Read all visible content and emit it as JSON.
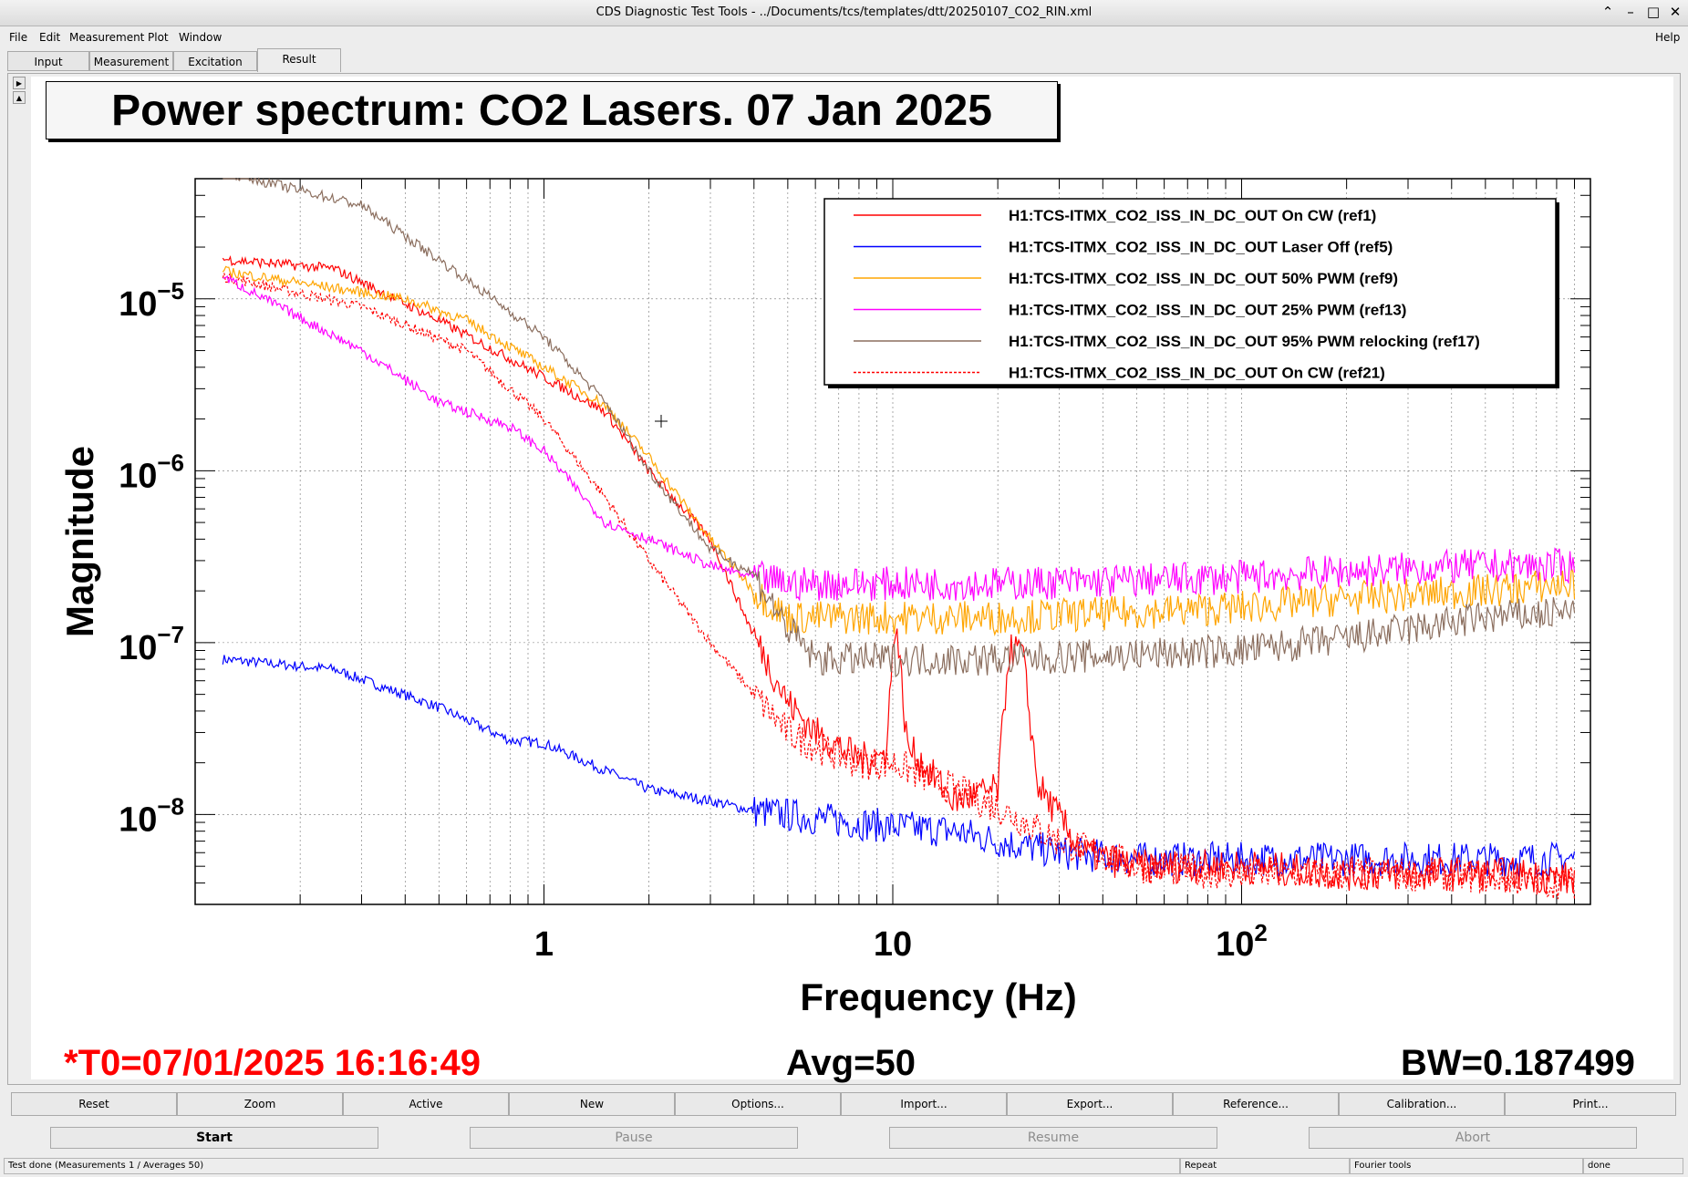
{
  "window": {
    "title": "CDS Diagnostic Test Tools - ../Documents/tcs/templates/dtt/20250107_CO2_RIN.xml",
    "controls": [
      "⌃",
      "–",
      "□",
      "✕"
    ]
  },
  "menu": {
    "items": [
      "File",
      "Edit",
      "Measurement",
      "Plot",
      "Window"
    ],
    "help": "Help"
  },
  "tabs": [
    {
      "label": "Input"
    },
    {
      "label": "Measurement"
    },
    {
      "label": "Excitation"
    },
    {
      "label": "Result",
      "active": true
    }
  ],
  "plot": {
    "title": "Power spectrum: CO2 Lasers. 07 Jan 2025",
    "footer": {
      "t0": "*T0=07/01/2025 16:16:49",
      "avg": "Avg=50",
      "bw": "BW=0.187499"
    }
  },
  "chart_data": {
    "type": "line",
    "title": "Power spectrum: CO2 Lasers. 07 Jan 2025",
    "xlabel": "Frequency (Hz)",
    "ylabel": "Magnitude",
    "xscale": "log",
    "yscale": "log",
    "xlim": [
      0.1,
      1000
    ],
    "ylim": [
      3e-09,
      5e-05
    ],
    "x_ticks": [
      {
        "v": 1,
        "label": "1"
      },
      {
        "v": 10,
        "label": "10"
      },
      {
        "v": 100,
        "label": "10",
        "exp": "2"
      }
    ],
    "y_ticks": [
      {
        "v": 1e-05,
        "label": "10",
        "exp": "−5"
      },
      {
        "v": 1e-06,
        "label": "10",
        "exp": "−6"
      },
      {
        "v": 1e-07,
        "label": "10",
        "exp": "−7"
      },
      {
        "v": 1e-08,
        "label": "10",
        "exp": "−8"
      }
    ],
    "grid": true,
    "legend_position": "top-right",
    "series": [
      {
        "name": "H1:TCS-ITMX_CO2_ISS_IN_DC_OUT On CW (ref1)",
        "color": "#ff0000",
        "dash": "",
        "x": [
          0.12,
          0.25,
          0.5,
          1,
          1.5,
          2,
          3,
          4,
          5,
          6,
          8,
          9.5,
          10.2,
          11,
          15,
          20,
          21.5,
          23.5,
          26,
          35,
          50,
          100,
          200,
          300,
          400,
          600,
          900
        ],
        "y": [
          1.7e-05,
          1.5e-05,
          7.5e-06,
          3.5e-06,
          2.2e-06,
          1e-06,
          4e-07,
          1.1e-07,
          4.5e-08,
          3e-08,
          2.1e-08,
          2.2e-08,
          1.4e-07,
          2.5e-08,
          1.2e-08,
          1.4e-08,
          9e-08,
          9e-08,
          1.5e-08,
          6e-09,
          5e-09,
          5e-09,
          4.5e-09,
          4.5e-09,
          4.5e-09,
          4.5e-09,
          4.2e-09
        ]
      },
      {
        "name": "H1:TCS-ITMX_CO2_ISS_IN_DC_OUT Laser Off (ref5)",
        "color": "#0000ff",
        "dash": "",
        "x": [
          0.12,
          0.25,
          0.5,
          0.8,
          1,
          1.5,
          2,
          3,
          4,
          6,
          10,
          15,
          20,
          30,
          50,
          100,
          200,
          500,
          900
        ],
        "y": [
          8e-08,
          7e-08,
          4.2e-08,
          2.7e-08,
          2.6e-08,
          1.8e-08,
          1.4e-08,
          1.2e-08,
          1.05e-08,
          9.5e-09,
          8.5e-09,
          8e-09,
          7e-09,
          6e-09,
          5.5e-09,
          5.5e-09,
          5.5e-09,
          5.5e-09,
          5.5e-09
        ]
      },
      {
        "name": "H1:TCS-ITMX_CO2_ISS_IN_DC_OUT 50% PWM (ref9)",
        "color": "#ffa500",
        "dash": "",
        "x": [
          0.12,
          0.4,
          0.6,
          1,
          1.5,
          2,
          3,
          4,
          5,
          7,
          10,
          20,
          50,
          100,
          200,
          500,
          900
        ],
        "y": [
          1.45e-05,
          1e-05,
          7.5e-06,
          4e-06,
          2.4e-06,
          1.2e-06,
          4e-07,
          2e-07,
          1.4e-07,
          1.4e-07,
          1.4e-07,
          1.4e-07,
          1.5e-07,
          1.6e-07,
          1.8e-07,
          2e-07,
          2.2e-07
        ]
      },
      {
        "name": "H1:TCS-ITMX_CO2_ISS_IN_DC_OUT  25% PWM (ref13)",
        "color": "#ff00ff",
        "dash": "",
        "x": [
          0.12,
          0.3,
          0.5,
          0.8,
          1,
          1.5,
          2,
          3,
          4,
          5,
          10,
          20,
          50,
          100,
          200,
          500,
          900
        ],
        "y": [
          1.35e-05,
          5e-06,
          2.5e-06,
          1.8e-06,
          1.3e-06,
          5e-07,
          4e-07,
          2.8e-07,
          2.4e-07,
          2.2e-07,
          2.2e-07,
          2.2e-07,
          2.3e-07,
          2.4e-07,
          2.6e-07,
          2.8e-07,
          2.8e-07
        ]
      },
      {
        "name": "H1:TCS-ITMX_CO2_ISS_IN_DC_OUT 95% PWM relocking (ref17)",
        "color": "#8b6e5e",
        "dash": "",
        "x": [
          0.12,
          0.3,
          0.6,
          1,
          1.5,
          2,
          3,
          4,
          5,
          6,
          10,
          20,
          50,
          100,
          200,
          500,
          900
        ],
        "y": [
          5.5e-05,
          3.5e-05,
          1.3e-05,
          6e-06,
          2.5e-06,
          1e-06,
          3.5e-07,
          2.5e-07,
          1.2e-07,
          8e-08,
          8e-08,
          8e-08,
          8.5e-08,
          9e-08,
          1.05e-07,
          1.4e-07,
          1.5e-07
        ]
      },
      {
        "name": "H1:TCS-ITMX_CO2_ISS_IN_DC_OUT On CW (ref21)",
        "color": "#ff0000",
        "dash": "3,2",
        "x": [
          0.12,
          0.3,
          0.6,
          1,
          1.5,
          2,
          3,
          4,
          5,
          6,
          8,
          10,
          15,
          20,
          30,
          50,
          100,
          200,
          300,
          400,
          600,
          900
        ],
        "y": [
          1.35e-05,
          9e-06,
          5e-06,
          2e-06,
          7e-07,
          3e-07,
          1e-07,
          5e-08,
          3e-08,
          2.5e-08,
          2e-08,
          2e-08,
          1.4e-08,
          1.1e-08,
          7e-09,
          5e-09,
          4.5e-09,
          4.5e-09,
          4.5e-09,
          4.5e-09,
          4.2e-09,
          4e-09
        ]
      }
    ]
  },
  "buttons": [
    "Reset",
    "Zoom",
    "Active",
    "New",
    "Options...",
    "Import...",
    "Export...",
    "Reference...",
    "Calibration...",
    "Print..."
  ],
  "controls": [
    {
      "label": "Start",
      "enabled": true
    },
    {
      "label": "Pause",
      "enabled": false
    },
    {
      "label": "Resume",
      "enabled": false
    },
    {
      "label": "Abort",
      "enabled": false
    }
  ],
  "status": {
    "message": "Test done (Measurements 1 / Averages 50)",
    "repeat": "Repeat",
    "tool": "Fourier tools",
    "state": "done"
  }
}
